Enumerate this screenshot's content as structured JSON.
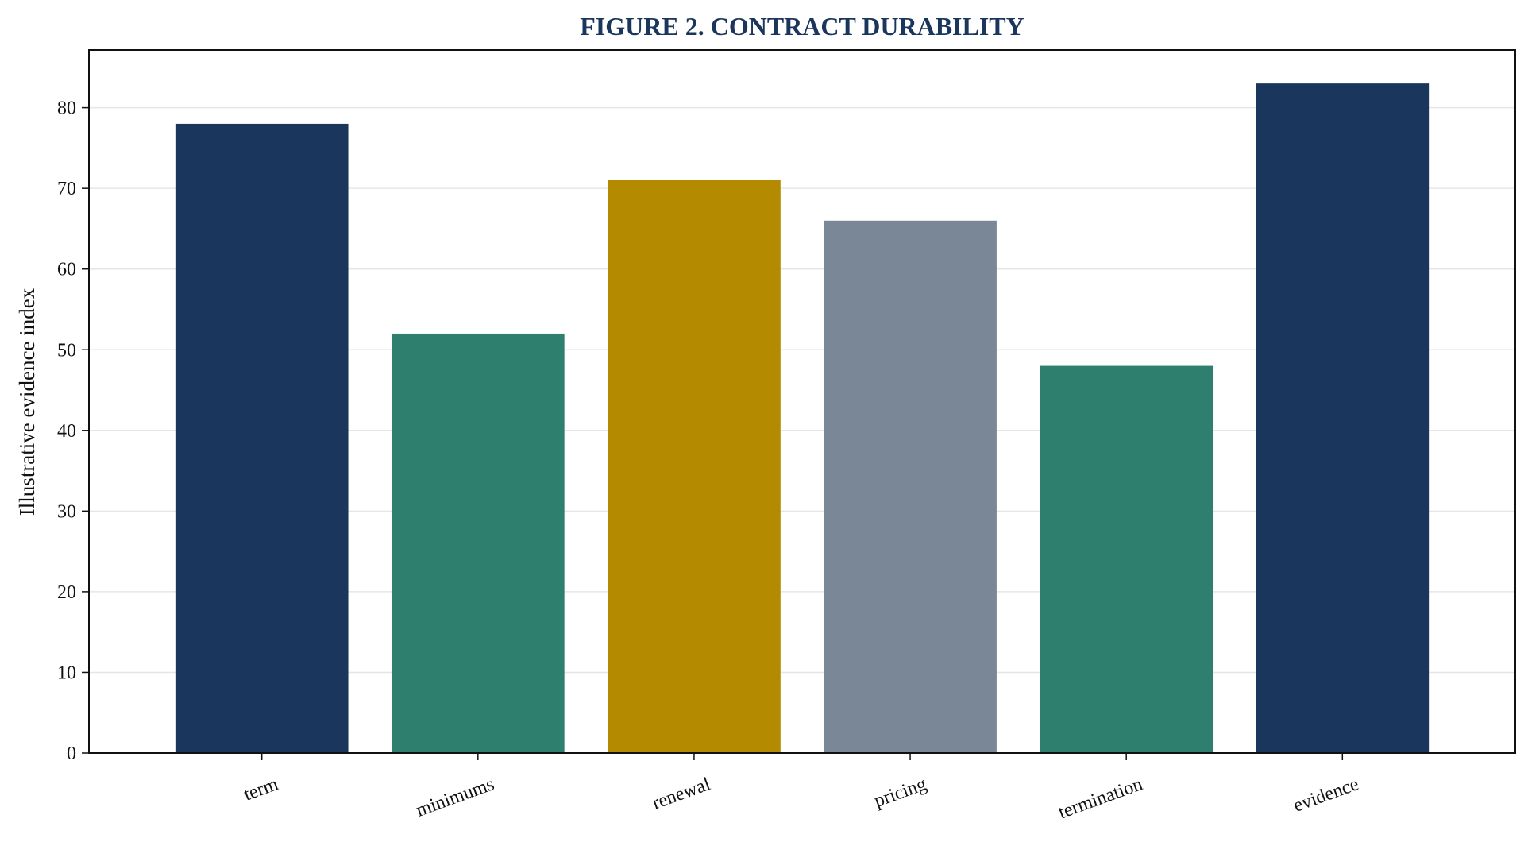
{
  "chart_data": {
    "type": "bar",
    "title": "FIGURE 2. CONTRACT DURABILITY",
    "xlabel": "",
    "ylabel": "Illustrative evidence index",
    "categories": [
      "term",
      "minimums",
      "renewal",
      "pricing",
      "termination",
      "evidence"
    ],
    "values": [
      78,
      52,
      71,
      66,
      48,
      83
    ],
    "colors": [
      "#1b365d",
      "#2e7f6e",
      "#b38a00",
      "#7a8797",
      "#2e7f6e",
      "#1b365d"
    ],
    "ylim": [
      0,
      87.15
    ],
    "yticks": [
      0,
      10,
      20,
      30,
      40,
      50,
      60,
      70,
      80
    ],
    "grid": true,
    "legend": "none"
  }
}
